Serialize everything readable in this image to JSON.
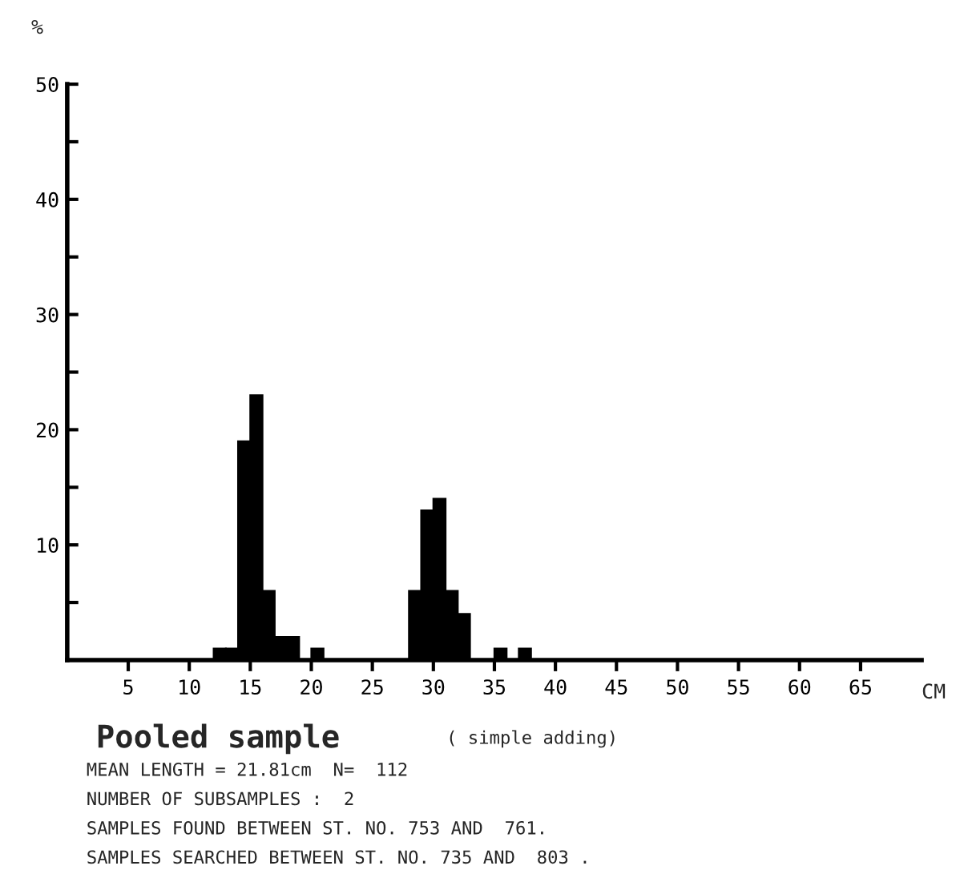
{
  "chart_data": {
    "type": "histogram",
    "title": "Pooled sample",
    "subtitle": "( simple adding)",
    "ylabel": "%",
    "xlabel": "CM",
    "bins": [
      0,
      1,
      2,
      3,
      4,
      5,
      6,
      7,
      8,
      9,
      10,
      11,
      12,
      13,
      14,
      15,
      16,
      17,
      18,
      19,
      20,
      21,
      22,
      23,
      24,
      25,
      26,
      27,
      28,
      29,
      30,
      31,
      32,
      33,
      34,
      35,
      36,
      37,
      38,
      39,
      40,
      41,
      42,
      43,
      44,
      45,
      46,
      47,
      48,
      49,
      50,
      51,
      52,
      53,
      54,
      55,
      56,
      57,
      58,
      59,
      60,
      61,
      62,
      63,
      64,
      65,
      66,
      67,
      68,
      69,
      70
    ],
    "values": [
      0,
      0,
      0,
      0,
      0,
      0,
      0,
      0,
      0,
      0,
      0,
      0,
      1,
      1,
      19,
      23,
      6,
      2,
      2,
      0,
      1,
      0,
      0,
      0,
      0,
      0,
      0,
      0,
      6,
      13,
      14,
      6,
      4,
      0,
      0,
      1,
      0,
      1,
      0,
      0,
      0,
      0,
      0,
      0,
      0,
      0,
      0,
      0,
      0,
      0,
      0,
      0,
      0,
      0,
      0,
      0,
      0,
      0,
      0,
      0,
      0,
      0,
      0,
      0,
      0,
      0,
      0,
      0,
      0,
      0
    ],
    "color": "#000000",
    "xlim": [
      0,
      70
    ],
    "ylim": [
      0,
      50
    ],
    "xticks": [
      5,
      10,
      15,
      20,
      25,
      30,
      35,
      40,
      45,
      50,
      55,
      60,
      65
    ],
    "yticks": [
      {
        "value": 5,
        "label": null
      },
      10,
      {
        "value": 15,
        "label": null
      },
      20,
      {
        "value": 25,
        "label": null
      },
      30,
      {
        "value": 35,
        "label": null
      },
      40,
      {
        "value": 45,
        "label": null
      },
      50
    ],
    "grid": false,
    "annotations": [
      "MEAN LENGTH = 21.81cm  N=  112",
      "NUMBER OF SUBSAMPLES :  2",
      "SAMPLES FOUND BETWEEN ST. NO. 753 AND  761.",
      "SAMPLES SEARCHED BETWEEN ST. NO. 735 AND  803 ."
    ]
  }
}
